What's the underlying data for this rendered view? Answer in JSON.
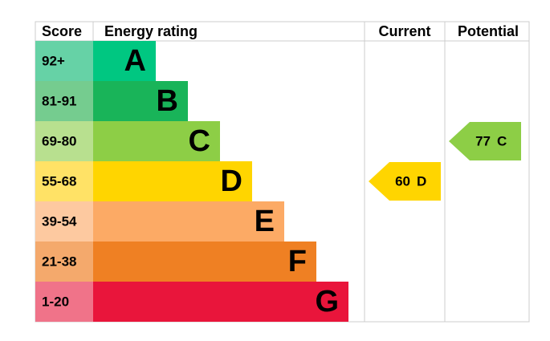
{
  "header": {
    "score": "Score",
    "rating": "Energy rating",
    "current": "Current",
    "potential": "Potential"
  },
  "bands": [
    {
      "score": "92+",
      "rating": "A",
      "color": "#00c781",
      "score_color": "#66d2a6"
    },
    {
      "score": "81-91",
      "rating": "B",
      "color": "#19b459",
      "score_color": "#75cc8f"
    },
    {
      "score": "69-80",
      "rating": "C",
      "color": "#8dce46",
      "score_color": "#b8e08f"
    },
    {
      "score": "55-68",
      "rating": "D",
      "color": "#ffd500",
      "score_color": "#ffe266"
    },
    {
      "score": "39-54",
      "rating": "E",
      "color": "#fcaa65",
      "score_color": "#fdc9a0"
    },
    {
      "score": "21-38",
      "rating": "F",
      "color": "#ef8023",
      "score_color": "#f4a96c"
    },
    {
      "score": "1-20",
      "rating": "G",
      "color": "#e9153b",
      "score_color": "#f07389"
    }
  ],
  "current": {
    "value": 60,
    "rating": "D"
  },
  "potential": {
    "value": 77,
    "rating": "C"
  }
}
